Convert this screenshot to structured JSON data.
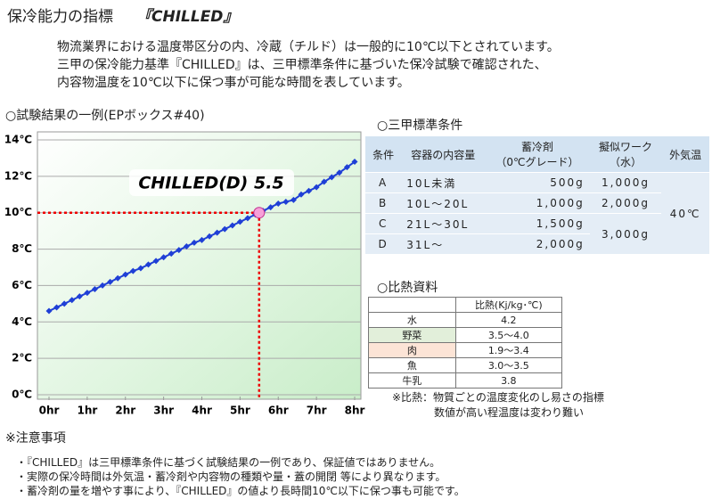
{
  "header": {
    "title": "保冷能力の指標",
    "title_em": "『CHILLED』"
  },
  "intro": [
    "物流業界における温度帯区分の内、冷蔵（チルド）は一般的に10℃以下とされています。",
    "三甲の保冷能力基準『CHILLED』は、三甲標準条件に基づいた保冷試験で確認された、",
    "内容物温度を10℃以下に保つ事が可能な時間を表しています。"
  ],
  "chart_data": {
    "type": "line",
    "title": "○試験結果の一例(EPボックス#40)",
    "color": "#1f3fd6",
    "x": [
      0,
      0.2,
      0.4,
      0.6,
      0.8,
      1,
      1.2,
      1.4,
      1.6,
      1.8,
      2,
      2.2,
      2.4,
      2.6,
      2.8,
      3,
      3.2,
      3.4,
      3.6,
      3.8,
      4,
      4.2,
      4.4,
      4.6,
      4.8,
      5,
      5.2,
      5.4,
      5.6,
      5.8,
      6,
      6.2,
      6.4,
      6.6,
      6.8,
      7,
      7.2,
      7.4,
      7.6,
      7.8,
      8
    ],
    "values": [
      4.6,
      4.8,
      5,
      5.2,
      5.4,
      5.6,
      5.8,
      6,
      6.2,
      6.4,
      6.6,
      6.8,
      6.95,
      7.15,
      7.35,
      7.55,
      7.75,
      7.95,
      8.15,
      8.35,
      8.5,
      8.7,
      8.9,
      9.1,
      9.3,
      9.5,
      9.7,
      9.9,
      10.1,
      10.3,
      10.5,
      10.6,
      10.7,
      11,
      11.2,
      11.4,
      11.7,
      11.95,
      12.2,
      12.5,
      12.8
    ],
    "xlim": [
      0,
      8
    ],
    "ylim": [
      0,
      14
    ],
    "grid": true,
    "xticks": [
      {
        "value": 0,
        "label": "0hr"
      },
      {
        "value": 1,
        "label": "1hr"
      },
      {
        "value": 2,
        "label": "2hr"
      },
      {
        "value": 3,
        "label": "3hr"
      },
      {
        "value": 4,
        "label": "4hr"
      },
      {
        "value": 5,
        "label": "5hr"
      },
      {
        "value": 6,
        "label": "6hr"
      },
      {
        "value": 7,
        "label": "7hr"
      },
      {
        "value": 8,
        "label": "8hr"
      }
    ],
    "yticks": [
      {
        "value": 0,
        "label": "0℃"
      },
      {
        "value": 2,
        "label": "2℃"
      },
      {
        "value": 4,
        "label": "4℃"
      },
      {
        "value": 6,
        "label": "6℃"
      },
      {
        "value": 8,
        "label": "8℃"
      },
      {
        "value": 10,
        "label": "10℃"
      },
      {
        "value": 12,
        "label": "12℃"
      },
      {
        "value": 14,
        "label": "14℃"
      }
    ],
    "highlight": {
      "x": 5.5,
      "y": 10,
      "label": "CHILLED(D) 5.5"
    }
  },
  "conditions": {
    "title": "○三甲標準条件",
    "header": [
      "条件",
      "容器の内容量",
      "蓄冷剤\n（0℃グレード）",
      "擬似ワーク\n（水）",
      "外気温"
    ],
    "rows": [
      [
        "A",
        "10L未満",
        "500g",
        "1,000g",
        "40℃"
      ],
      [
        "B",
        "10L～20L",
        "1,000g",
        "2,000g"
      ],
      [
        "C",
        "21L～30L",
        "1,500g",
        "3,000g"
      ],
      [
        "D",
        "31L～",
        "2,000g"
      ]
    ]
  },
  "specific_heat": {
    "title": "○比熱資料",
    "header": "比熱(Kj/kg･℃)",
    "rows": [
      [
        "水",
        "4.2"
      ],
      [
        "野菜",
        "3.5～4.0"
      ],
      [
        "肉",
        "1.9～3.4"
      ],
      [
        "魚",
        "3.0～3.5"
      ],
      [
        "牛乳",
        "3.8"
      ]
    ],
    "note": [
      "※比熱：物質ごとの温度変化のし易さの指標",
      "数値が高い程温度は変わり難い"
    ]
  },
  "cautions": {
    "title": "※注意事項",
    "items": [
      "・『CHILLED』は三甲標準条件に基づく試験結果の一例であり、保証値ではありません。",
      "・実際の保冷時間は外気温・蓄冷剤や内容物の種類や量・蓋の開閉 等により異なります。",
      "・蓄冷剤の量を増やす事により、『CHILLED』の値より長時間10℃以下に保つ事も可能です。"
    ]
  }
}
